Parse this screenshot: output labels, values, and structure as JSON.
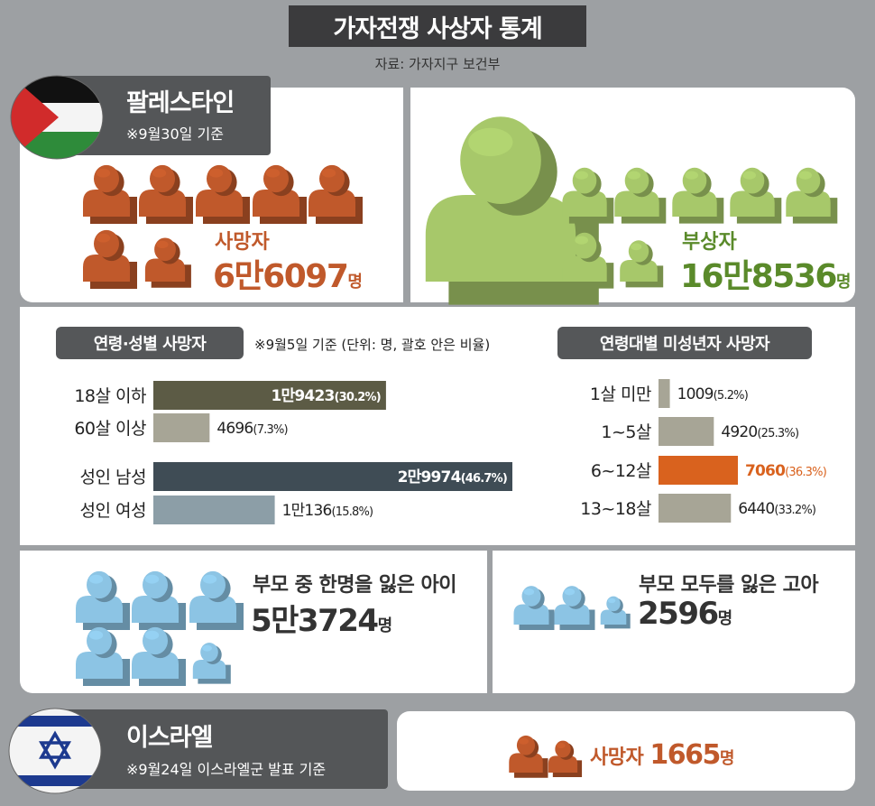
{
  "title": "가자전쟁 사상자 통계",
  "source": "자료: 가자지구 보건부",
  "palestine": {
    "name": "팔레스타인",
    "date": "※9월30일 기준",
    "deaths_label": "사망자",
    "deaths_value": "6만6097",
    "injured_label": "부상자",
    "injured_value": "16만8536",
    "unit": "명"
  },
  "age_gender": {
    "title": "연령·성별 사망자",
    "note": "※9월5일 기준 (단위: 명, 괄호 안은 비율)"
  },
  "minors": {
    "title": "연령대별 미성년자 사망자"
  },
  "orphans": {
    "one_parent_label": "부모 중 한명을 잃은 아이",
    "one_parent_value": "5만3724",
    "both_parents_label": "부모 모두를 잃은 고아",
    "both_parents_value": "2596",
    "unit": "명"
  },
  "israel": {
    "name": "이스라엘",
    "date": "※9월24일 이스라엘군 발표 기준",
    "deaths_label": "사망자",
    "deaths_value": "1665",
    "unit": "명"
  },
  "colors": {
    "death": "#c0592b",
    "injured": "#a7c86a",
    "injured_text": "#5a8a2a",
    "orphan": "#8cc4e4",
    "highlight": "#d9621e"
  },
  "chart_data": [
    {
      "type": "bar",
      "orientation": "horizontal",
      "title": "연령·성별 사망자",
      "categories": [
        "18살 이하",
        "60살 이상",
        "성인 남성",
        "성인 여성"
      ],
      "values": [
        19423,
        4696,
        29974,
        10136
      ],
      "value_labels": [
        "1만9423",
        "4696",
        "2만9974",
        "1만136"
      ],
      "percent_labels": [
        "(30.2%)",
        "(7.3%)",
        "(46.7%)",
        "(15.8%)"
      ],
      "percent": [
        30.2,
        7.3,
        46.7,
        15.8
      ],
      "colors": [
        "#5c5b45",
        "#a7a596",
        "#3f4c55",
        "#8c9ea7"
      ]
    },
    {
      "type": "bar",
      "orientation": "horizontal",
      "title": "연령대별 미성년자 사망자",
      "categories": [
        "1살 미만",
        "1~5살",
        "6~12살",
        "13~18살"
      ],
      "values": [
        1009,
        4920,
        7060,
        6440
      ],
      "value_labels": [
        "1009",
        "4920",
        "7060",
        "6440"
      ],
      "percent_labels": [
        "(5.2%)",
        "(25.3%)",
        "(36.3%)",
        "(33.2%)"
      ],
      "percent": [
        5.2,
        25.3,
        36.3,
        33.2
      ],
      "colors": [
        "#a7a596",
        "#a7a596",
        "#d9621e",
        "#a7a596"
      ]
    }
  ]
}
